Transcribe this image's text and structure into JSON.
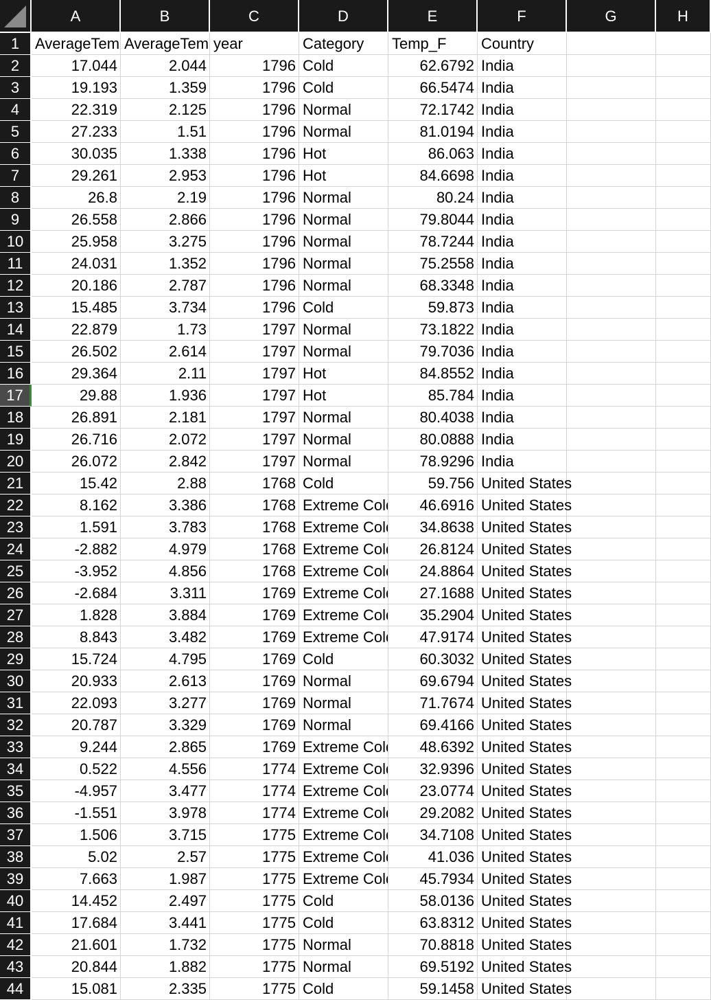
{
  "columns": [
    "A",
    "B",
    "C",
    "D",
    "E",
    "F",
    "G",
    "H"
  ],
  "active_row": "17",
  "header_row": {
    "row_label": "1",
    "cells": [
      "AverageTem",
      "AverageTem",
      "year",
      "Category",
      "Temp_F",
      "Country",
      "",
      ""
    ]
  },
  "rows": [
    {
      "label": "2",
      "a": "17.044",
      "b": "2.044",
      "c": "1796",
      "d": "Cold",
      "e": "62.6792",
      "f": "India"
    },
    {
      "label": "3",
      "a": "19.193",
      "b": "1.359",
      "c": "1796",
      "d": "Cold",
      "e": "66.5474",
      "f": "India"
    },
    {
      "label": "4",
      "a": "22.319",
      "b": "2.125",
      "c": "1796",
      "d": "Normal",
      "e": "72.1742",
      "f": "India"
    },
    {
      "label": "5",
      "a": "27.233",
      "b": "1.51",
      "c": "1796",
      "d": "Normal",
      "e": "81.0194",
      "f": "India"
    },
    {
      "label": "6",
      "a": "30.035",
      "b": "1.338",
      "c": "1796",
      "d": "Hot",
      "e": "86.063",
      "f": "India"
    },
    {
      "label": "7",
      "a": "29.261",
      "b": "2.953",
      "c": "1796",
      "d": "Hot",
      "e": "84.6698",
      "f": "India"
    },
    {
      "label": "8",
      "a": "26.8",
      "b": "2.19",
      "c": "1796",
      "d": "Normal",
      "e": "80.24",
      "f": "India"
    },
    {
      "label": "9",
      "a": "26.558",
      "b": "2.866",
      "c": "1796",
      "d": "Normal",
      "e": "79.8044",
      "f": "India"
    },
    {
      "label": "10",
      "a": "25.958",
      "b": "3.275",
      "c": "1796",
      "d": "Normal",
      "e": "78.7244",
      "f": "India"
    },
    {
      "label": "11",
      "a": "24.031",
      "b": "1.352",
      "c": "1796",
      "d": "Normal",
      "e": "75.2558",
      "f": "India"
    },
    {
      "label": "12",
      "a": "20.186",
      "b": "2.787",
      "c": "1796",
      "d": "Normal",
      "e": "68.3348",
      "f": "India"
    },
    {
      "label": "13",
      "a": "15.485",
      "b": "3.734",
      "c": "1796",
      "d": "Cold",
      "e": "59.873",
      "f": "India"
    },
    {
      "label": "14",
      "a": "22.879",
      "b": "1.73",
      "c": "1797",
      "d": "Normal",
      "e": "73.1822",
      "f": "India"
    },
    {
      "label": "15",
      "a": "26.502",
      "b": "2.614",
      "c": "1797",
      "d": "Normal",
      "e": "79.7036",
      "f": "India"
    },
    {
      "label": "16",
      "a": "29.364",
      "b": "2.11",
      "c": "1797",
      "d": "Hot",
      "e": "84.8552",
      "f": "India"
    },
    {
      "label": "17",
      "a": "29.88",
      "b": "1.936",
      "c": "1797",
      "d": "Hot",
      "e": "85.784",
      "f": "India"
    },
    {
      "label": "18",
      "a": "26.891",
      "b": "2.181",
      "c": "1797",
      "d": "Normal",
      "e": "80.4038",
      "f": "India"
    },
    {
      "label": "19",
      "a": "26.716",
      "b": "2.072",
      "c": "1797",
      "d": "Normal",
      "e": "80.0888",
      "f": "India"
    },
    {
      "label": "20",
      "a": "26.072",
      "b": "2.842",
      "c": "1797",
      "d": "Normal",
      "e": "78.9296",
      "f": "India"
    },
    {
      "label": "21",
      "a": "15.42",
      "b": "2.88",
      "c": "1768",
      "d": "Cold",
      "e": "59.756",
      "f": "United States"
    },
    {
      "label": "22",
      "a": "8.162",
      "b": "3.386",
      "c": "1768",
      "d": "Extreme Cold",
      "e": "46.6916",
      "f": "United States"
    },
    {
      "label": "23",
      "a": "1.591",
      "b": "3.783",
      "c": "1768",
      "d": "Extreme Cold",
      "e": "34.8638",
      "f": "United States"
    },
    {
      "label": "24",
      "a": "-2.882",
      "b": "4.979",
      "c": "1768",
      "d": "Extreme Cold",
      "e": "26.8124",
      "f": "United States"
    },
    {
      "label": "25",
      "a": "-3.952",
      "b": "4.856",
      "c": "1768",
      "d": "Extreme Cold",
      "e": "24.8864",
      "f": "United States"
    },
    {
      "label": "26",
      "a": "-2.684",
      "b": "3.311",
      "c": "1769",
      "d": "Extreme Cold",
      "e": "27.1688",
      "f": "United States"
    },
    {
      "label": "27",
      "a": "1.828",
      "b": "3.884",
      "c": "1769",
      "d": "Extreme Cold",
      "e": "35.2904",
      "f": "United States"
    },
    {
      "label": "28",
      "a": "8.843",
      "b": "3.482",
      "c": "1769",
      "d": "Extreme Cold",
      "e": "47.9174",
      "f": "United States"
    },
    {
      "label": "29",
      "a": "15.724",
      "b": "4.795",
      "c": "1769",
      "d": "Cold",
      "e": "60.3032",
      "f": "United States"
    },
    {
      "label": "30",
      "a": "20.933",
      "b": "2.613",
      "c": "1769",
      "d": "Normal",
      "e": "69.6794",
      "f": "United States"
    },
    {
      "label": "31",
      "a": "22.093",
      "b": "3.277",
      "c": "1769",
      "d": "Normal",
      "e": "71.7674",
      "f": "United States"
    },
    {
      "label": "32",
      "a": "20.787",
      "b": "3.329",
      "c": "1769",
      "d": "Normal",
      "e": "69.4166",
      "f": "United States"
    },
    {
      "label": "33",
      "a": "9.244",
      "b": "2.865",
      "c": "1769",
      "d": "Extreme Cold",
      "e": "48.6392",
      "f": "United States"
    },
    {
      "label": "34",
      "a": "0.522",
      "b": "4.556",
      "c": "1774",
      "d": "Extreme Cold",
      "e": "32.9396",
      "f": "United States"
    },
    {
      "label": "35",
      "a": "-4.957",
      "b": "3.477",
      "c": "1774",
      "d": "Extreme Cold",
      "e": "23.0774",
      "f": "United States"
    },
    {
      "label": "36",
      "a": "-1.551",
      "b": "3.978",
      "c": "1774",
      "d": "Extreme Cold",
      "e": "29.2082",
      "f": "United States"
    },
    {
      "label": "37",
      "a": "1.506",
      "b": "3.715",
      "c": "1775",
      "d": "Extreme Cold",
      "e": "34.7108",
      "f": "United States"
    },
    {
      "label": "38",
      "a": "5.02",
      "b": "2.57",
      "c": "1775",
      "d": "Extreme Cold",
      "e": "41.036",
      "f": "United States"
    },
    {
      "label": "39",
      "a": "7.663",
      "b": "1.987",
      "c": "1775",
      "d": "Extreme Cold",
      "e": "45.7934",
      "f": "United States"
    },
    {
      "label": "40",
      "a": "14.452",
      "b": "2.497",
      "c": "1775",
      "d": "Cold",
      "e": "58.0136",
      "f": "United States"
    },
    {
      "label": "41",
      "a": "17.684",
      "b": "3.441",
      "c": "1775",
      "d": "Cold",
      "e": "63.8312",
      "f": "United States"
    },
    {
      "label": "42",
      "a": "21.601",
      "b": "1.732",
      "c": "1775",
      "d": "Normal",
      "e": "70.8818",
      "f": "United States"
    },
    {
      "label": "43",
      "a": "20.844",
      "b": "1.882",
      "c": "1775",
      "d": "Normal",
      "e": "69.5192",
      "f": "United States"
    },
    {
      "label": "44",
      "a": "15.081",
      "b": "2.335",
      "c": "1775",
      "d": "Cold",
      "e": "59.1458",
      "f": "United States"
    }
  ]
}
